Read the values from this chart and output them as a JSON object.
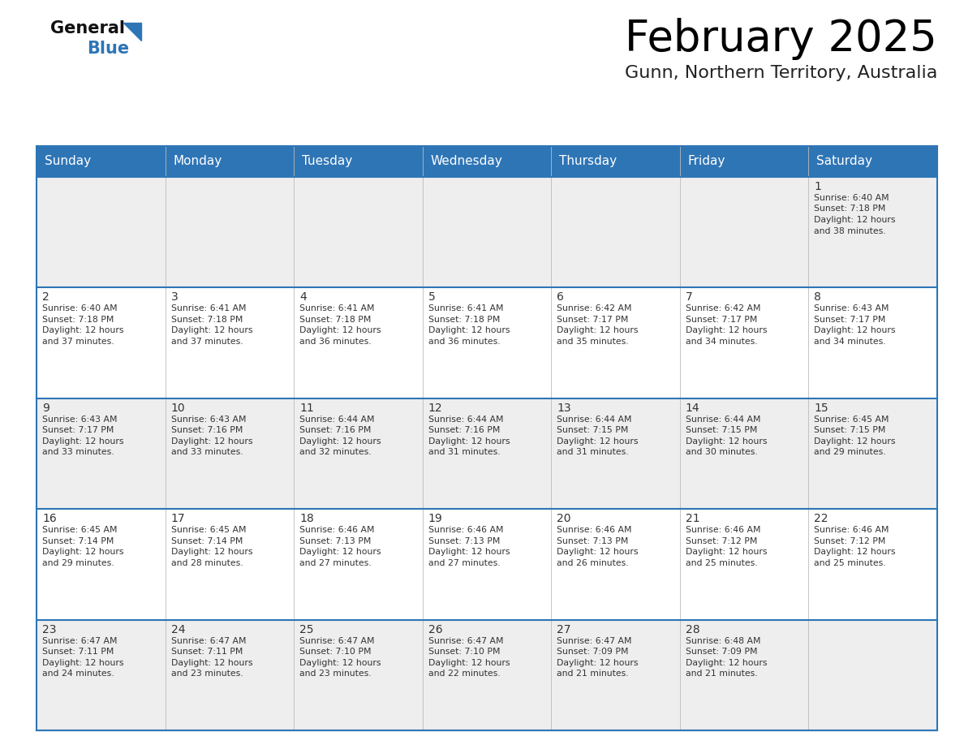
{
  "title": "February 2025",
  "subtitle": "Gunn, Northern Territory, Australia",
  "header_color": "#2e75b6",
  "header_text_color": "#ffffff",
  "border_color": "#2e75b6",
  "day_names": [
    "Sunday",
    "Monday",
    "Tuesday",
    "Wednesday",
    "Thursday",
    "Friday",
    "Saturday"
  ],
  "days": [
    {
      "day": 1,
      "col": 6,
      "row": 0,
      "sunrise": "6:40 AM",
      "sunset": "7:18 PM",
      "daylight": "12 hours and 38 minutes."
    },
    {
      "day": 2,
      "col": 0,
      "row": 1,
      "sunrise": "6:40 AM",
      "sunset": "7:18 PM",
      "daylight": "12 hours and 37 minutes."
    },
    {
      "day": 3,
      "col": 1,
      "row": 1,
      "sunrise": "6:41 AM",
      "sunset": "7:18 PM",
      "daylight": "12 hours and 37 minutes."
    },
    {
      "day": 4,
      "col": 2,
      "row": 1,
      "sunrise": "6:41 AM",
      "sunset": "7:18 PM",
      "daylight": "12 hours and 36 minutes."
    },
    {
      "day": 5,
      "col": 3,
      "row": 1,
      "sunrise": "6:41 AM",
      "sunset": "7:18 PM",
      "daylight": "12 hours and 36 minutes."
    },
    {
      "day": 6,
      "col": 4,
      "row": 1,
      "sunrise": "6:42 AM",
      "sunset": "7:17 PM",
      "daylight": "12 hours and 35 minutes."
    },
    {
      "day": 7,
      "col": 5,
      "row": 1,
      "sunrise": "6:42 AM",
      "sunset": "7:17 PM",
      "daylight": "12 hours and 34 minutes."
    },
    {
      "day": 8,
      "col": 6,
      "row": 1,
      "sunrise": "6:43 AM",
      "sunset": "7:17 PM",
      "daylight": "12 hours and 34 minutes."
    },
    {
      "day": 9,
      "col": 0,
      "row": 2,
      "sunrise": "6:43 AM",
      "sunset": "7:17 PM",
      "daylight": "12 hours and 33 minutes."
    },
    {
      "day": 10,
      "col": 1,
      "row": 2,
      "sunrise": "6:43 AM",
      "sunset": "7:16 PM",
      "daylight": "12 hours and 33 minutes."
    },
    {
      "day": 11,
      "col": 2,
      "row": 2,
      "sunrise": "6:44 AM",
      "sunset": "7:16 PM",
      "daylight": "12 hours and 32 minutes."
    },
    {
      "day": 12,
      "col": 3,
      "row": 2,
      "sunrise": "6:44 AM",
      "sunset": "7:16 PM",
      "daylight": "12 hours and 31 minutes."
    },
    {
      "day": 13,
      "col": 4,
      "row": 2,
      "sunrise": "6:44 AM",
      "sunset": "7:15 PM",
      "daylight": "12 hours and 31 minutes."
    },
    {
      "day": 14,
      "col": 5,
      "row": 2,
      "sunrise": "6:44 AM",
      "sunset": "7:15 PM",
      "daylight": "12 hours and 30 minutes."
    },
    {
      "day": 15,
      "col": 6,
      "row": 2,
      "sunrise": "6:45 AM",
      "sunset": "7:15 PM",
      "daylight": "12 hours and 29 minutes."
    },
    {
      "day": 16,
      "col": 0,
      "row": 3,
      "sunrise": "6:45 AM",
      "sunset": "7:14 PM",
      "daylight": "12 hours and 29 minutes."
    },
    {
      "day": 17,
      "col": 1,
      "row": 3,
      "sunrise": "6:45 AM",
      "sunset": "7:14 PM",
      "daylight": "12 hours and 28 minutes."
    },
    {
      "day": 18,
      "col": 2,
      "row": 3,
      "sunrise": "6:46 AM",
      "sunset": "7:13 PM",
      "daylight": "12 hours and 27 minutes."
    },
    {
      "day": 19,
      "col": 3,
      "row": 3,
      "sunrise": "6:46 AM",
      "sunset": "7:13 PM",
      "daylight": "12 hours and 27 minutes."
    },
    {
      "day": 20,
      "col": 4,
      "row": 3,
      "sunrise": "6:46 AM",
      "sunset": "7:13 PM",
      "daylight": "12 hours and 26 minutes."
    },
    {
      "day": 21,
      "col": 5,
      "row": 3,
      "sunrise": "6:46 AM",
      "sunset": "7:12 PM",
      "daylight": "12 hours and 25 minutes."
    },
    {
      "day": 22,
      "col": 6,
      "row": 3,
      "sunrise": "6:46 AM",
      "sunset": "7:12 PM",
      "daylight": "12 hours and 25 minutes."
    },
    {
      "day": 23,
      "col": 0,
      "row": 4,
      "sunrise": "6:47 AM",
      "sunset": "7:11 PM",
      "daylight": "12 hours and 24 minutes."
    },
    {
      "day": 24,
      "col": 1,
      "row": 4,
      "sunrise": "6:47 AM",
      "sunset": "7:11 PM",
      "daylight": "12 hours and 23 minutes."
    },
    {
      "day": 25,
      "col": 2,
      "row": 4,
      "sunrise": "6:47 AM",
      "sunset": "7:10 PM",
      "daylight": "12 hours and 23 minutes."
    },
    {
      "day": 26,
      "col": 3,
      "row": 4,
      "sunrise": "6:47 AM",
      "sunset": "7:10 PM",
      "daylight": "12 hours and 22 minutes."
    },
    {
      "day": 27,
      "col": 4,
      "row": 4,
      "sunrise": "6:47 AM",
      "sunset": "7:09 PM",
      "daylight": "12 hours and 21 minutes."
    },
    {
      "day": 28,
      "col": 5,
      "row": 4,
      "sunrise": "6:48 AM",
      "sunset": "7:09 PM",
      "daylight": "12 hours and 21 minutes."
    }
  ],
  "fig_width": 11.88,
  "fig_height": 9.18,
  "dpi": 100
}
